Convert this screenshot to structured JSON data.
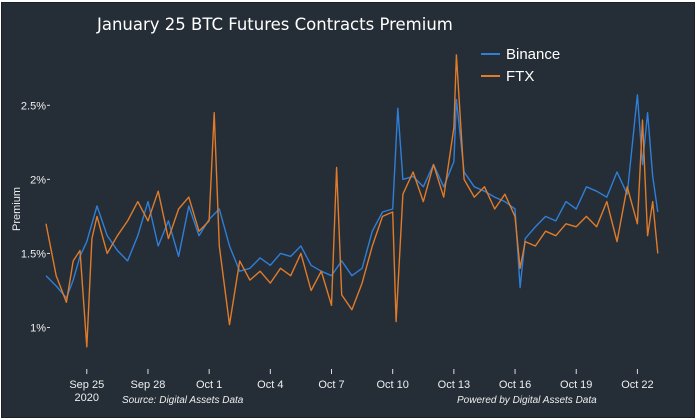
{
  "chart_data": {
    "type": "line",
    "title": "January 25 BTC Futures Contracts Premium",
    "xlabel": "",
    "ylabel": "Premium",
    "ylim": [
      0.72,
      2.88
    ],
    "y_unit": "%",
    "y_ticks": [
      1.0,
      1.5,
      2.0,
      2.5
    ],
    "y_tick_labels": [
      "1%",
      "1.5%",
      "2%",
      "2.5%"
    ],
    "x_start": "2020-09-23",
    "x_end": "2020-10-23",
    "x_ticks": [
      "2020-09-25",
      "2020-09-28",
      "2020-10-01",
      "2020-10-04",
      "2020-10-07",
      "2020-10-10",
      "2020-10-13",
      "2020-10-16",
      "2020-10-19",
      "2020-10-22"
    ],
    "x_tick_labels": [
      "Sep 25",
      "Sep 28",
      "Oct 1",
      "Oct 4",
      "Oct 7",
      "Oct 10",
      "Oct 13",
      "Oct 16",
      "Oct 19",
      "Oct 22"
    ],
    "x_year_label": "2020",
    "grid": false,
    "legend_position": "top-right",
    "series": [
      {
        "name": "Binance",
        "color": "#2f7ed8",
        "points": [
          [
            "2020-09-23",
            1.35
          ],
          [
            "2020-09-23T12:00",
            1.28
          ],
          [
            "2020-09-24",
            1.2
          ],
          [
            "2020-09-24T08:00",
            1.32
          ],
          [
            "2020-09-24T16:00",
            1.48
          ],
          [
            "2020-09-25",
            1.58
          ],
          [
            "2020-09-25T12:00",
            1.82
          ],
          [
            "2020-09-26",
            1.62
          ],
          [
            "2020-09-26T12:00",
            1.52
          ],
          [
            "2020-09-27",
            1.45
          ],
          [
            "2020-09-27T12:00",
            1.62
          ],
          [
            "2020-09-28",
            1.85
          ],
          [
            "2020-09-28T12:00",
            1.55
          ],
          [
            "2020-09-29",
            1.72
          ],
          [
            "2020-09-29T12:00",
            1.48
          ],
          [
            "2020-09-30",
            1.82
          ],
          [
            "2020-09-30T12:00",
            1.62
          ],
          [
            "2020-10-01",
            1.73
          ],
          [
            "2020-10-01T12:00",
            1.8
          ],
          [
            "2020-10-02",
            1.55
          ],
          [
            "2020-10-02T12:00",
            1.38
          ],
          [
            "2020-10-03",
            1.4
          ],
          [
            "2020-10-03T12:00",
            1.47
          ],
          [
            "2020-10-04",
            1.42
          ],
          [
            "2020-10-04T12:00",
            1.5
          ],
          [
            "2020-10-05",
            1.48
          ],
          [
            "2020-10-05T12:00",
            1.55
          ],
          [
            "2020-10-06",
            1.42
          ],
          [
            "2020-10-06T12:00",
            1.38
          ],
          [
            "2020-10-07",
            1.35
          ],
          [
            "2020-10-07T12:00",
            1.45
          ],
          [
            "2020-10-08",
            1.35
          ],
          [
            "2020-10-08T12:00",
            1.4
          ],
          [
            "2020-10-09",
            1.65
          ],
          [
            "2020-10-09T12:00",
            1.78
          ],
          [
            "2020-10-10",
            1.8
          ],
          [
            "2020-10-10T06:00",
            2.48
          ],
          [
            "2020-10-10T12:00",
            2.0
          ],
          [
            "2020-10-11",
            2.02
          ],
          [
            "2020-10-11T12:00",
            1.95
          ],
          [
            "2020-10-12",
            2.1
          ],
          [
            "2020-10-12T12:00",
            1.95
          ],
          [
            "2020-10-13",
            2.12
          ],
          [
            "2020-10-13T03:00",
            2.54
          ],
          [
            "2020-10-13T12:00",
            2.05
          ],
          [
            "2020-10-14",
            1.95
          ],
          [
            "2020-10-14T12:00",
            1.92
          ],
          [
            "2020-10-15",
            1.88
          ],
          [
            "2020-10-15T12:00",
            1.85
          ],
          [
            "2020-10-16",
            1.8
          ],
          [
            "2020-10-16T06:00",
            1.27
          ],
          [
            "2020-10-16T12:00",
            1.6
          ],
          [
            "2020-10-17",
            1.68
          ],
          [
            "2020-10-17T12:00",
            1.75
          ],
          [
            "2020-10-18",
            1.72
          ],
          [
            "2020-10-18T12:00",
            1.85
          ],
          [
            "2020-10-19",
            1.8
          ],
          [
            "2020-10-19T12:00",
            1.95
          ],
          [
            "2020-10-20",
            1.92
          ],
          [
            "2020-10-20T12:00",
            1.88
          ],
          [
            "2020-10-21",
            2.05
          ],
          [
            "2020-10-21T12:00",
            1.9
          ],
          [
            "2020-10-22",
            2.57
          ],
          [
            "2020-10-22T06:00",
            2.1
          ],
          [
            "2020-10-22T12:00",
            2.45
          ],
          [
            "2020-10-22T18:00",
            2.02
          ],
          [
            "2020-10-23",
            1.78
          ]
        ]
      },
      {
        "name": "FTX",
        "color": "#e07b2a",
        "points": [
          [
            "2020-09-23",
            1.7
          ],
          [
            "2020-09-23T12:00",
            1.35
          ],
          [
            "2020-09-24",
            1.17
          ],
          [
            "2020-09-24T08:00",
            1.45
          ],
          [
            "2020-09-24T16:00",
            1.52
          ],
          [
            "2020-09-25",
            0.87
          ],
          [
            "2020-09-25T06:00",
            1.6
          ],
          [
            "2020-09-25T12:00",
            1.75
          ],
          [
            "2020-09-26",
            1.5
          ],
          [
            "2020-09-26T12:00",
            1.62
          ],
          [
            "2020-09-27",
            1.72
          ],
          [
            "2020-09-27T12:00",
            1.85
          ],
          [
            "2020-09-28",
            1.72
          ],
          [
            "2020-09-28T12:00",
            1.92
          ],
          [
            "2020-09-29",
            1.6
          ],
          [
            "2020-09-29T12:00",
            1.8
          ],
          [
            "2020-09-30",
            1.88
          ],
          [
            "2020-09-30T12:00",
            1.65
          ],
          [
            "2020-10-01",
            1.72
          ],
          [
            "2020-10-01T06:00",
            2.45
          ],
          [
            "2020-10-01T12:00",
            1.55
          ],
          [
            "2020-10-02",
            1.02
          ],
          [
            "2020-10-02T12:00",
            1.45
          ],
          [
            "2020-10-03",
            1.32
          ],
          [
            "2020-10-03T12:00",
            1.38
          ],
          [
            "2020-10-04",
            1.3
          ],
          [
            "2020-10-04T12:00",
            1.4
          ],
          [
            "2020-10-05",
            1.35
          ],
          [
            "2020-10-05T12:00",
            1.5
          ],
          [
            "2020-10-06",
            1.25
          ],
          [
            "2020-10-06T12:00",
            1.38
          ],
          [
            "2020-10-07",
            1.15
          ],
          [
            "2020-10-07T06:00",
            2.08
          ],
          [
            "2020-10-07T12:00",
            1.22
          ],
          [
            "2020-10-08",
            1.12
          ],
          [
            "2020-10-08T12:00",
            1.3
          ],
          [
            "2020-10-09",
            1.55
          ],
          [
            "2020-10-09T12:00",
            1.75
          ],
          [
            "2020-10-10",
            1.78
          ],
          [
            "2020-10-10T04:00",
            1.04
          ],
          [
            "2020-10-10T12:00",
            1.9
          ],
          [
            "2020-10-11",
            2.05
          ],
          [
            "2020-10-11T12:00",
            1.85
          ],
          [
            "2020-10-12",
            2.1
          ],
          [
            "2020-10-12T12:00",
            1.88
          ],
          [
            "2020-10-13",
            2.35
          ],
          [
            "2020-10-13T03:00",
            2.84
          ],
          [
            "2020-10-13T12:00",
            2.0
          ],
          [
            "2020-10-14",
            1.88
          ],
          [
            "2020-10-14T12:00",
            1.95
          ],
          [
            "2020-10-15",
            1.8
          ],
          [
            "2020-10-15T12:00",
            1.9
          ],
          [
            "2020-10-16",
            1.75
          ],
          [
            "2020-10-16T06:00",
            1.4
          ],
          [
            "2020-10-16T12:00",
            1.58
          ],
          [
            "2020-10-17",
            1.55
          ],
          [
            "2020-10-17T12:00",
            1.65
          ],
          [
            "2020-10-18",
            1.62
          ],
          [
            "2020-10-18T12:00",
            1.7
          ],
          [
            "2020-10-19",
            1.68
          ],
          [
            "2020-10-19T12:00",
            1.75
          ],
          [
            "2020-10-20",
            1.68
          ],
          [
            "2020-10-20T12:00",
            1.85
          ],
          [
            "2020-10-21",
            1.58
          ],
          [
            "2020-10-21T12:00",
            1.95
          ],
          [
            "2020-10-22",
            1.7
          ],
          [
            "2020-10-22T06:00",
            2.4
          ],
          [
            "2020-10-22T12:00",
            1.62
          ],
          [
            "2020-10-22T18:00",
            1.85
          ],
          [
            "2020-10-23",
            1.5
          ]
        ]
      }
    ]
  },
  "footer": {
    "source_left": "Source: Digital Assets Data",
    "source_right": "Powered by Digital Assets Data"
  }
}
